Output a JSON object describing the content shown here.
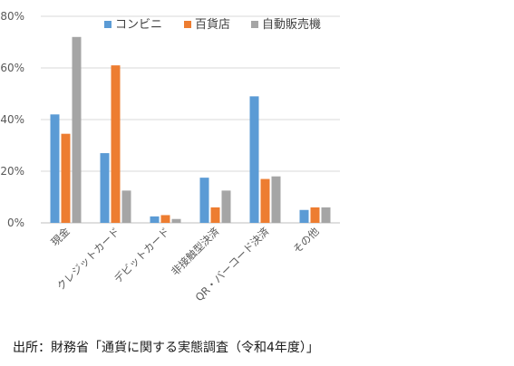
{
  "chart_data": {
    "type": "bar",
    "categories": [
      "現金",
      "クレジットカード",
      "デビットカード",
      "非接触型決済",
      "QR・バーコード決済",
      "その他"
    ],
    "series": [
      {
        "name": "コンビニ",
        "color": "#5B9BD5",
        "values": [
          42,
          27,
          2.5,
          17.5,
          49,
          5
        ]
      },
      {
        "name": "百貨店",
        "color": "#ED7D31",
        "values": [
          34.5,
          61,
          3,
          6,
          17,
          6
        ]
      },
      {
        "name": "自動販売機",
        "color": "#A5A5A5",
        "values": [
          72,
          12.5,
          1.5,
          12.5,
          18,
          6
        ]
      }
    ],
    "ylim": [
      0,
      80
    ],
    "yticks": [
      "0%",
      "20%",
      "40%",
      "60%",
      "80%"
    ],
    "grid": true,
    "legend_position": "top"
  },
  "source": "出所：財務省「通貨に関する実態調査（令和4年度）」"
}
